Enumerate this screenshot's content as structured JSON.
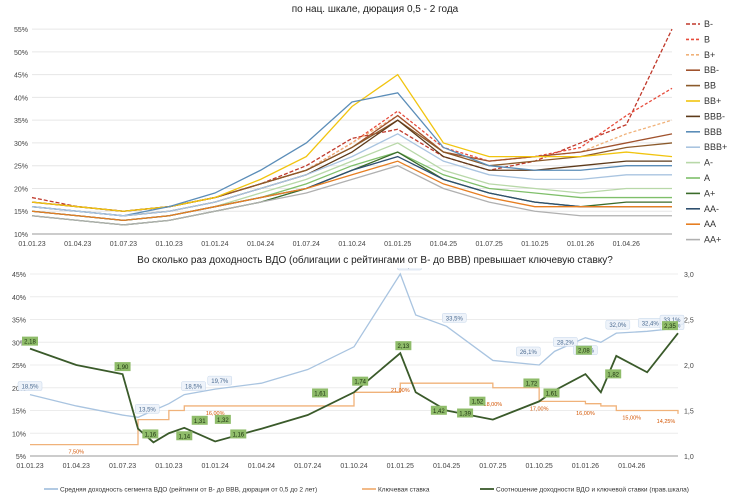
{
  "chart_data": [
    {
      "type": "line",
      "title": "",
      "subtitle": "по нац. шкале, дюрация 0,5 - 2 года",
      "xlabel": "",
      "ylabel": "",
      "x_ticks": [
        "01.01.23",
        "01.04.23",
        "01.07.23",
        "01.10.23",
        "01.01.24",
        "01.04.24",
        "01.07.24",
        "01.10.24",
        "01.01.25",
        "01.04.25",
        "01.07.25",
        "01.10.25",
        "01.01.26",
        "01.04.26"
      ],
      "y_ticks": [
        "10%",
        "15%",
        "20%",
        "25%",
        "30%",
        "35%",
        "40%",
        "45%",
        "50%",
        "55%"
      ],
      "ylim": [
        10,
        57
      ],
      "grid": true,
      "legend": "right",
      "x": [
        0,
        3,
        6,
        9,
        12,
        15,
        18,
        21,
        24,
        27,
        30,
        33,
        36,
        39,
        42
      ],
      "series": [
        {
          "name": "B-",
          "color": "#c0392b",
          "dash": "4,2",
          "values": [
            18,
            16,
            15,
            16,
            18,
            21,
            25,
            31,
            33,
            27,
            24,
            26,
            30,
            34,
            55
          ]
        },
        {
          "name": "B",
          "color": "#e74c3c",
          "dash": "3,2",
          "values": [
            17,
            16,
            15,
            16,
            18,
            21,
            24,
            30,
            37,
            29,
            26,
            27,
            29,
            36,
            42
          ]
        },
        {
          "name": "B+",
          "color": "#f0b27a",
          "dash": "3,2",
          "values": [
            17,
            16,
            15,
            16,
            18,
            21,
            24,
            30,
            36,
            28,
            26,
            27,
            28,
            32,
            35
          ]
        },
        {
          "name": "BB-",
          "color": "#a0522d",
          "dash": "",
          "values": [
            17,
            16,
            15,
            16,
            18,
            21,
            24,
            29,
            36,
            28,
            26,
            27,
            28,
            30,
            32
          ]
        },
        {
          "name": "BB",
          "color": "#8b5a2b",
          "dash": "",
          "values": [
            17,
            16,
            15,
            16,
            18,
            21,
            24,
            29,
            35,
            28,
            25,
            26,
            27,
            29,
            30
          ]
        },
        {
          "name": "BB+",
          "color": "#f1c40f",
          "dash": "",
          "values": [
            17,
            16,
            15,
            16,
            18,
            22,
            27,
            38,
            45,
            30,
            27,
            27,
            27,
            28,
            27
          ]
        },
        {
          "name": "BBB-",
          "color": "#5d3a1a",
          "dash": "",
          "values": [
            16,
            15,
            14,
            15,
            17,
            20,
            23,
            28,
            35,
            27,
            24,
            24,
            25,
            26,
            26
          ]
        },
        {
          "name": "BBB",
          "color": "#5b8db8",
          "dash": "",
          "values": [
            16,
            15,
            14,
            16,
            19,
            24,
            30,
            39,
            41,
            29,
            25,
            24,
            24,
            25,
            25
          ]
        },
        {
          "name": "BBB+",
          "color": "#a9c4e0",
          "dash": "",
          "values": [
            16,
            15,
            14,
            15,
            17,
            20,
            23,
            27,
            32,
            26,
            23,
            22,
            22,
            23,
            23
          ]
        },
        {
          "name": "A-",
          "color": "#b8d8a8",
          "dash": "",
          "values": [
            15,
            14,
            13,
            14,
            16,
            19,
            22,
            26,
            30,
            24,
            21,
            20,
            19,
            20,
            20
          ]
        },
        {
          "name": "A",
          "color": "#7fbf6a",
          "dash": "",
          "values": [
            15,
            14,
            13,
            14,
            16,
            18,
            21,
            25,
            28,
            23,
            20,
            19,
            18,
            18,
            18
          ]
        },
        {
          "name": "A+",
          "color": "#3a6b2a",
          "dash": "",
          "values": [
            14,
            13,
            12,
            13,
            15,
            17,
            20,
            24,
            28,
            22,
            19,
            17,
            16,
            17,
            17
          ]
        },
        {
          "name": "AA-",
          "color": "#2f4f6f",
          "dash": "",
          "values": [
            15,
            14,
            13,
            14,
            16,
            18,
            20,
            24,
            27,
            22,
            19,
            17,
            16,
            16,
            16
          ]
        },
        {
          "name": "AA",
          "color": "#e67e22",
          "dash": "",
          "values": [
            15,
            14,
            13,
            14,
            16,
            18,
            20,
            23,
            26,
            21,
            18,
            16,
            16,
            16,
            16
          ]
        },
        {
          "name": "AA+",
          "color": "#b0b0b0",
          "dash": "",
          "values": [
            14,
            13,
            12,
            13,
            15,
            17,
            19,
            22,
            25,
            20,
            17,
            15,
            14,
            14,
            14
          ]
        }
      ]
    },
    {
      "type": "line",
      "title": "Во сколько раз доходность ВДО (облигации с рейтингами от B- до BBB) превышает ключевую ставку?",
      "xlabel": "",
      "ylabel": "",
      "x_ticks": [
        "01.01.23",
        "01.04.23",
        "01.07.23",
        "01.10.23",
        "01.01.24",
        "01.04.24",
        "01.07.24",
        "01.10.24",
        "01.01.25",
        "01.04.25",
        "01.07.25",
        "01.10.25",
        "01.01.26",
        "01.04.26"
      ],
      "y_ticks": [
        "5%",
        "10%",
        "15%",
        "20%",
        "25%",
        "30%",
        "35%",
        "40%",
        "45%"
      ],
      "y2_ticks": [
        "1,0",
        "1,5",
        "2,0",
        "2,5",
        "3,0"
      ],
      "ylim": [
        5,
        45
      ],
      "y2lim": [
        1.0,
        3.0
      ],
      "grid": true,
      "legend": "bottom",
      "x": [
        0,
        3,
        6,
        7,
        8,
        9,
        10,
        12,
        15,
        18,
        21,
        24,
        25,
        27,
        30,
        33,
        34,
        36,
        37,
        38,
        40,
        42
      ],
      "series": [
        {
          "name": "Средняя доходность сегмента ВДО (рейтинги от B- до BBB, дюрация от 0,5 до 2 лет)",
          "color": "#a9c4e0",
          "axis": "left",
          "values": [
            18.5,
            16,
            14,
            13.5,
            15,
            16.5,
            18.5,
            19.7,
            21,
            24,
            29,
            45,
            36,
            33.5,
            26,
            25,
            28,
            31,
            30,
            32,
            32.4,
            33.1
          ]
        },
        {
          "name": "Ключевая ставка",
          "color": "#f0b27a",
          "axis": "left",
          "step": true,
          "values": [
            7.5,
            7.5,
            7.5,
            13,
            13,
            15,
            16,
            16,
            16,
            16,
            19,
            21,
            21,
            21,
            20,
            17,
            17,
            16.5,
            16,
            15,
            15,
            14.25
          ]
        },
        {
          "name": "Соотношение доходности ВДО и ключевой ставки (прав.шкала)",
          "color": "#3a5a2a",
          "axis": "right",
          "values": [
            2.18,
            2.0,
            1.9,
            1.3,
            1.15,
            1.25,
            1.31,
            1.16,
            1.3,
            1.45,
            1.7,
            2.13,
            1.7,
            1.5,
            1.4,
            1.6,
            1.72,
            1.9,
            1.7,
            2.1,
            1.92,
            2.35
          ]
        }
      ],
      "annotations": {
        "yield": [
          "18,5%",
          "13,5%",
          "19,7%",
          "18,5%",
          "45,0%",
          "33,5%",
          "26,1%",
          "28,2%",
          "26,4%",
          "32,0%",
          "32,4%",
          "31,9%",
          "33,1%"
        ],
        "key_rate": [
          "7,50%",
          "16,00%",
          "21,00%",
          "18,00%",
          "17,00%",
          "16,00%",
          "15,00%",
          "14,25%"
        ],
        "ratio": [
          "2,18",
          "1,90",
          "1,16",
          "1,31",
          "1,14",
          "1,32",
          "1,16",
          "1,61",
          "1,74",
          "2,13",
          "1,42",
          "1,52",
          "1,39",
          "1,72",
          "1,61",
          "2,08",
          "1,82",
          "2,35"
        ]
      }
    }
  ]
}
